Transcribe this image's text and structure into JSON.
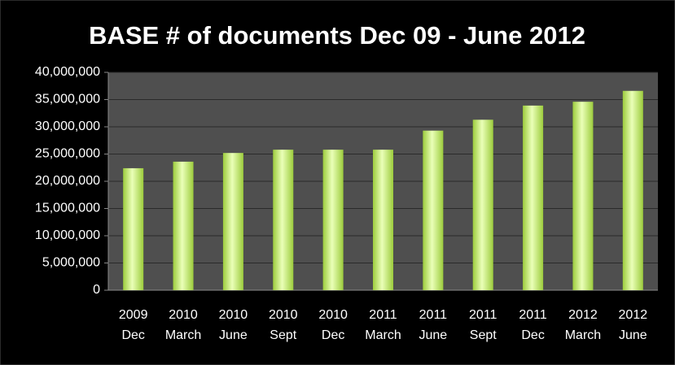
{
  "chart_data": {
    "type": "bar",
    "title": "BASE # of documents Dec 09 - June 2012",
    "categories": [
      [
        "2009",
        "Dec"
      ],
      [
        "2010",
        "March"
      ],
      [
        "2010",
        "June"
      ],
      [
        "2010",
        "Sept"
      ],
      [
        "2010",
        "Dec"
      ],
      [
        "2011",
        "March"
      ],
      [
        "2011",
        "June"
      ],
      [
        "2011",
        "Sept"
      ],
      [
        "2011",
        "Dec"
      ],
      [
        "2012",
        "March"
      ],
      [
        "2012",
        "June"
      ]
    ],
    "values": [
      22400000,
      23600000,
      25200000,
      25800000,
      25800000,
      25800000,
      29300000,
      31300000,
      33900000,
      34600000,
      36600000
    ],
    "color": "#9ccc3c",
    "ylim": [
      0,
      40000000
    ],
    "yticks": [
      0,
      {
        "value": 5000000,
        "label": "5,000,000"
      },
      {
        "value": 10000000,
        "label": "10,000,000"
      },
      {
        "value": 15000000,
        "label": "15,000,000"
      },
      {
        "value": 20000000,
        "label": "20,000,000"
      },
      {
        "value": 25000000,
        "label": "25,000,000"
      },
      {
        "value": 30000000,
        "label": "30,000,000"
      },
      {
        "value": 35000000,
        "label": "35,000,000"
      },
      {
        "value": 40000000,
        "label": "40,000,000"
      }
    ],
    "grid": true
  }
}
